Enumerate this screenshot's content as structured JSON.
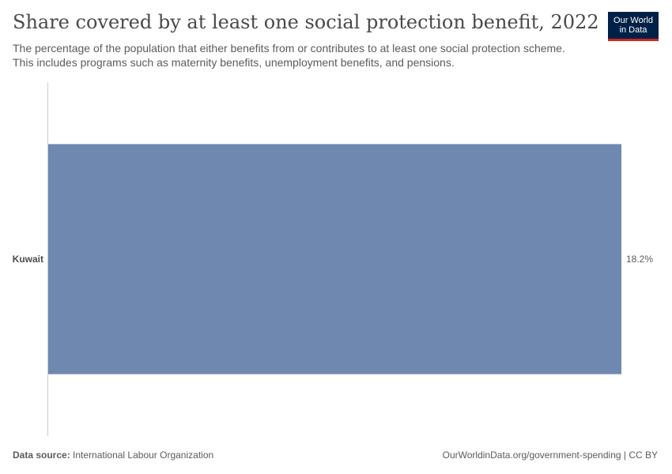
{
  "title": "Share covered by at least one social protection benefit, 2022",
  "subtitle": "The percentage of the population that either benefits from or contributes to at least one social protection scheme. This includes programs such as maternity benefits, unemployment benefits, and pensions.",
  "logo": {
    "line1": "Our World",
    "line2": "in Data"
  },
  "footer": {
    "source_label": "Data source:",
    "source_value": "International Labour Organization",
    "url_license": "OurWorldinData.org/government-spending | CC BY"
  },
  "colors": {
    "bar": "#6f88b0",
    "axis": "#cccccc",
    "text": "#5b5b5b"
  },
  "chart_data": {
    "type": "bar",
    "orientation": "horizontal",
    "categories": [
      "Kuwait"
    ],
    "values": [
      18.2
    ],
    "value_labels": [
      "18.2%"
    ],
    "xlim": [
      0,
      18.2
    ],
    "grid": false
  }
}
